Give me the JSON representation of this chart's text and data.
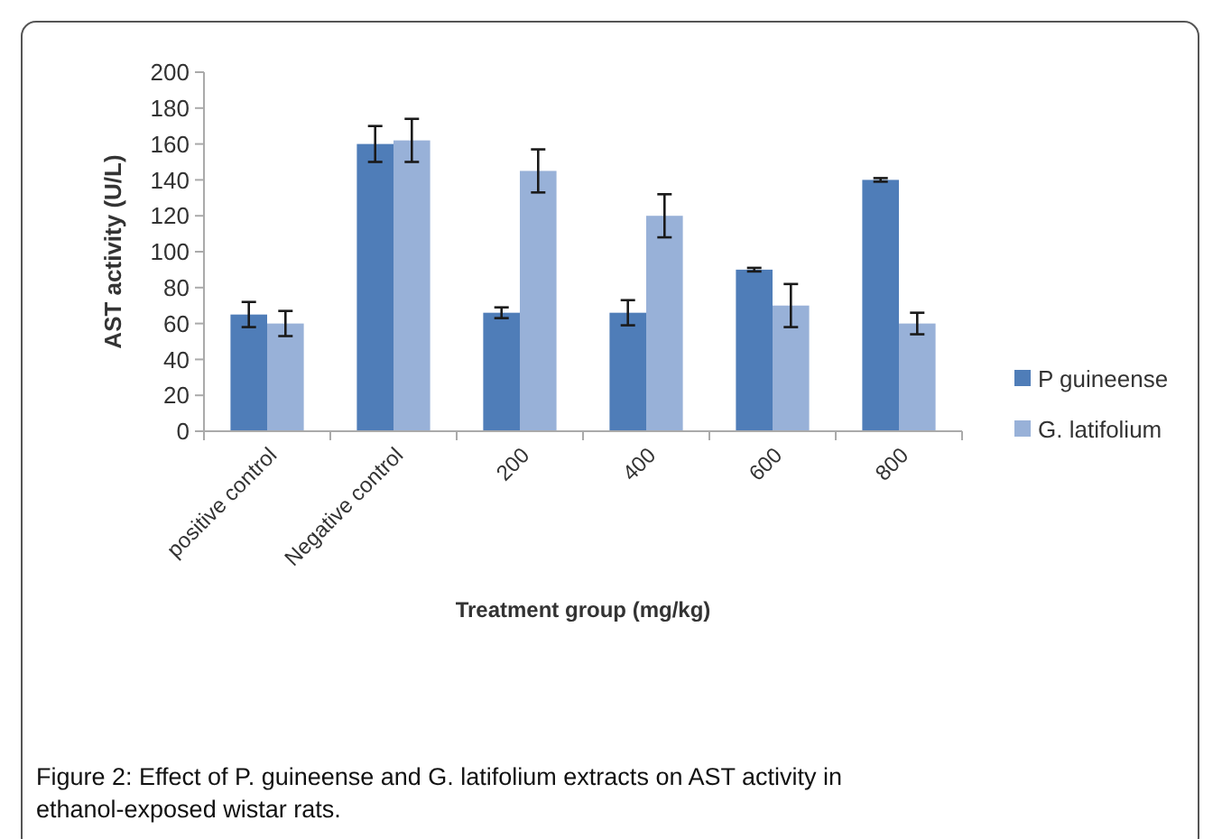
{
  "chart_data": {
    "type": "bar",
    "categories": [
      "positive control",
      "Negative control",
      "200",
      "400",
      "600",
      "800"
    ],
    "series": [
      {
        "name": "P guineense",
        "color": "#4f7db8",
        "values": [
          65,
          160,
          66,
          66,
          90,
          140
        ],
        "errors": [
          7,
          10,
          3,
          7,
          1,
          1
        ]
      },
      {
        "name": "G. latifolium",
        "color": "#98b1d8",
        "values": [
          60,
          162,
          145,
          120,
          70,
          60
        ],
        "errors": [
          7,
          12,
          12,
          12,
          12,
          6
        ]
      }
    ],
    "xlabel": "Treatment group (mg/kg)",
    "ylabel": "AST activity (U/L)",
    "ylim": [
      0,
      200
    ],
    "yticks": [
      0,
      20,
      40,
      60,
      80,
      100,
      120,
      140,
      160,
      180,
      200
    ],
    "legend": "right",
    "annotations": [
      "Figure 2: Effect of P. guineense and G. latifolium extracts on AST activity in ethanol-exposed wistar rats."
    ]
  }
}
